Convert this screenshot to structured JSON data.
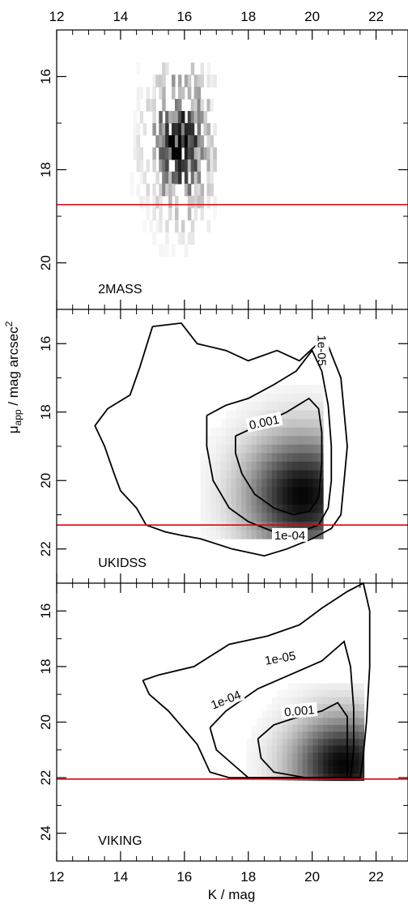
{
  "chart_data": {
    "type": "heatmap",
    "xlabel": "K / mag",
    "ylabel_main": "μ",
    "ylabel_sub": "app",
    "ylabel_tail": " / mag arcsec",
    "ylabel_sup": "2",
    "xlim": [
      12,
      23
    ],
    "x_ticks": [
      "12",
      "14",
      "16",
      "18",
      "20",
      "22"
    ],
    "threshold_color": "#e0000a",
    "panels": [
      {
        "label": "2MASS",
        "ylim": [
          15,
          21
        ],
        "y_ticks": [
          "16",
          "18",
          "20"
        ],
        "threshold": 18.75,
        "density": {
          "cx": 15.8,
          "cy": 17.3,
          "sx": 0.65,
          "sy": 1.0,
          "xmin": 13.2,
          "xmax": 17.0,
          "ymin": 15.7,
          "ymax": 21.0,
          "sparse": true
        },
        "contours": []
      },
      {
        "label": "UKIDSS",
        "ylim": [
          15,
          23
        ],
        "y_ticks": [
          "16",
          "18",
          "20",
          "22"
        ],
        "threshold": 21.3,
        "density": {
          "cx": 19.6,
          "cy": 20.3,
          "sx": 1.3,
          "sy": 1.3,
          "xmin": 16.5,
          "xmax": 20.2,
          "ymin": 16.2,
          "ymax": 21.7,
          "sparse": false
        },
        "contours": [
          {
            "level": "1e-05",
            "points": [
              [
                15.0,
                15.5
              ],
              [
                15.9,
                15.4
              ],
              [
                16.4,
                16.0
              ],
              [
                17.3,
                16.2
              ],
              [
                18.0,
                16.5
              ],
              [
                18.9,
                16.2
              ],
              [
                19.6,
                16.5
              ],
              [
                20.4,
                15.8
              ],
              [
                20.6,
                16.3
              ],
              [
                20.9,
                17.0
              ],
              [
                21.0,
                18.0
              ],
              [
                21.1,
                19.0
              ],
              [
                21.0,
                20.0
              ],
              [
                20.9,
                21.0
              ],
              [
                20.6,
                21.4
              ],
              [
                20.0,
                21.7
              ],
              [
                19.2,
                22.0
              ],
              [
                18.5,
                22.2
              ],
              [
                17.5,
                22.0
              ],
              [
                16.5,
                21.7
              ],
              [
                15.9,
                21.6
              ],
              [
                15.4,
                21.5
              ],
              [
                14.8,
                21.3
              ],
              [
                14.5,
                20.8
              ],
              [
                14.0,
                20.3
              ],
              [
                13.8,
                19.8
              ],
              [
                13.5,
                19.0
              ],
              [
                13.2,
                18.4
              ],
              [
                13.6,
                17.9
              ],
              [
                14.3,
                17.5
              ],
              [
                14.6,
                16.7
              ],
              [
                15.0,
                15.5
              ]
            ],
            "label_at": [
              20.3,
              16.2
            ],
            "label_rot": 90
          },
          {
            "level": "1e-04",
            "points": [
              [
                16.7,
                18.1
              ],
              [
                17.3,
                17.8
              ],
              [
                18.0,
                17.6
              ],
              [
                18.8,
                17.2
              ],
              [
                19.5,
                16.8
              ],
              [
                20.0,
                16.2
              ],
              [
                20.3,
                16.8
              ],
              [
                20.5,
                17.8
              ],
              [
                20.6,
                19.0
              ],
              [
                20.6,
                20.0
              ],
              [
                20.5,
                20.8
              ],
              [
                20.2,
                21.3
              ],
              [
                19.6,
                21.5
              ],
              [
                18.8,
                21.5
              ],
              [
                18.0,
                21.2
              ],
              [
                17.4,
                20.8
              ],
              [
                16.9,
                20.0
              ],
              [
                16.7,
                19.0
              ],
              [
                16.7,
                18.1
              ]
            ],
            "label_at": [
              19.3,
              21.6
            ],
            "label_rot": 0
          },
          {
            "level": "0.001",
            "points": [
              [
                17.6,
                18.7
              ],
              [
                18.3,
                18.4
              ],
              [
                19.2,
                18.0
              ],
              [
                19.9,
                17.6
              ],
              [
                20.2,
                17.9
              ],
              [
                20.3,
                18.6
              ],
              [
                20.3,
                19.5
              ],
              [
                20.2,
                20.5
              ],
              [
                19.9,
                20.9
              ],
              [
                19.4,
                21.0
              ],
              [
                18.8,
                20.8
              ],
              [
                18.2,
                20.4
              ],
              [
                17.8,
                19.8
              ],
              [
                17.6,
                19.2
              ],
              [
                17.6,
                18.7
              ]
            ],
            "label_at": [
              18.5,
              18.3
            ],
            "label_rot": -12
          }
        ]
      },
      {
        "label": "VIKING",
        "ylim": [
          15,
          25
        ],
        "y_ticks": [
          "16",
          "18",
          "20",
          "22",
          "24"
        ],
        "threshold": 22.05,
        "density": {
          "cx": 20.9,
          "cy": 21.4,
          "sx": 1.2,
          "sy": 1.3,
          "xmin": 17.3,
          "xmax": 21.5,
          "ymin": 18.6,
          "ymax": 22.0,
          "sparse": false
        },
        "contours": [
          {
            "level": "1e-05",
            "points": [
              [
                14.7,
                18.5
              ],
              [
                15.2,
                18.3
              ],
              [
                16.3,
                18.0
              ],
              [
                17.4,
                17.2
              ],
              [
                18.6,
                16.9
              ],
              [
                19.6,
                16.5
              ],
              [
                20.3,
                15.9
              ],
              [
                21.1,
                15.3
              ],
              [
                21.6,
                15.0
              ],
              [
                21.8,
                16.0
              ],
              [
                21.8,
                18.0
              ],
              [
                21.7,
                20.0
              ],
              [
                21.6,
                21.2
              ],
              [
                21.5,
                22.0
              ],
              [
                20.0,
                22.0
              ],
              [
                18.5,
                22.0
              ],
              [
                17.4,
                22.0
              ],
              [
                16.8,
                21.8
              ],
              [
                16.4,
                20.8
              ],
              [
                15.5,
                19.6
              ],
              [
                14.9,
                19.0
              ],
              [
                14.7,
                18.5
              ]
            ],
            "label_at": [
              19.0,
              17.7
            ],
            "label_rot": -10
          },
          {
            "level": "1e-04",
            "points": [
              [
                16.8,
                20.2
              ],
              [
                17.3,
                19.6
              ],
              [
                18.3,
                18.8
              ],
              [
                19.3,
                18.3
              ],
              [
                20.3,
                17.8
              ],
              [
                21.0,
                17.1
              ],
              [
                21.2,
                18.0
              ],
              [
                21.3,
                19.5
              ],
              [
                21.3,
                21.0
              ],
              [
                21.2,
                22.0
              ],
              [
                19.5,
                22.0
              ],
              [
                18.0,
                22.0
              ],
              [
                17.5,
                21.5
              ],
              [
                17.0,
                21.0
              ],
              [
                16.8,
                20.2
              ]
            ],
            "label_at": [
              17.3,
              19.2
            ],
            "label_rot": -22
          },
          {
            "level": "0.001",
            "points": [
              [
                18.3,
                20.6
              ],
              [
                18.8,
                20.1
              ],
              [
                19.6,
                19.8
              ],
              [
                20.3,
                19.6
              ],
              [
                20.8,
                19.3
              ],
              [
                21.1,
                19.8
              ],
              [
                21.1,
                20.8
              ],
              [
                21.1,
                22.0
              ],
              [
                19.8,
                22.0
              ],
              [
                18.8,
                21.8
              ],
              [
                18.4,
                21.3
              ],
              [
                18.3,
                20.6
              ]
            ],
            "label_at": [
              19.6,
              19.6
            ],
            "label_rot": -5
          }
        ]
      }
    ]
  }
}
